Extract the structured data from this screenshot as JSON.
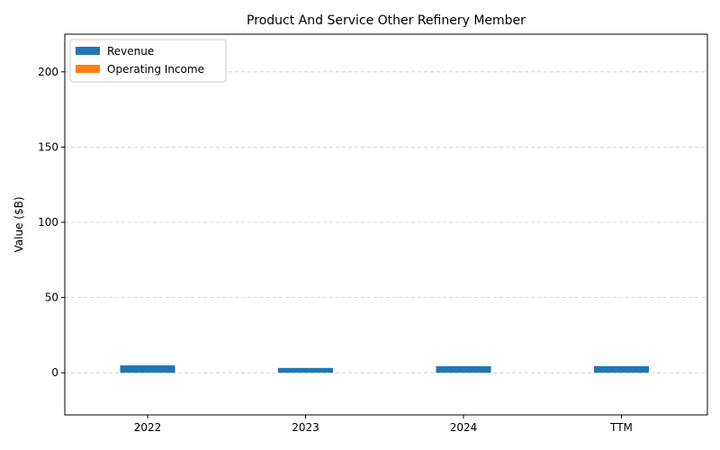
{
  "chart_data": {
    "type": "bar",
    "title": "Product And Service Other Refinery Member",
    "xlabel": "",
    "ylabel": "Value ($B)",
    "categories": [
      "2022",
      "2023",
      "2024",
      "TTM"
    ],
    "series": [
      {
        "name": "Revenue",
        "color": "#1f77b4",
        "values": [
          4.9,
          3.2,
          4.4,
          4.4
        ]
      },
      {
        "name": "Operating Income",
        "color": "#ff7f0e",
        "values": [
          0,
          0,
          0,
          0
        ]
      }
    ],
    "ylim": [
      -28,
      225
    ],
    "yticks": [
      0,
      50,
      100,
      150,
      200
    ],
    "grid": true,
    "legend_position": "top-left"
  }
}
